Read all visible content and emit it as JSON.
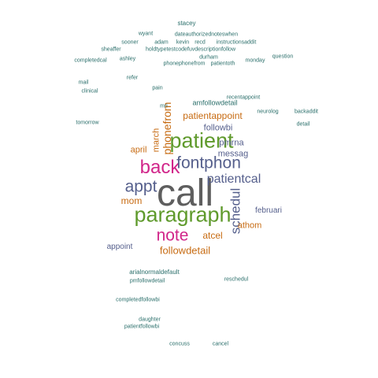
{
  "cloud": {
    "colors": {
      "gray": "#5e5e5e",
      "green": "#5f9a2c",
      "magenta": "#d1268a",
      "orange": "#c76b12",
      "slate": "#555f8c",
      "teal": "#2b6f6b",
      "blue": "#226b94"
    },
    "words": [
      "call",
      "paragraph",
      "patient",
      "back",
      "fontphon",
      "note",
      "appt",
      "patientcal",
      "schedul",
      "phonefrom",
      "followdetail",
      "patientappoint",
      "atcel",
      "mom",
      "april",
      "march",
      "followbi",
      "pmrna",
      "messag",
      "februari",
      "athom",
      "appoint",
      "stacey",
      "wyant",
      "dateauthorizednoteswhen",
      "sooner",
      "adam",
      "kevin",
      "recd",
      "instructionsaddit",
      "sheaffer",
      "holdtypetestcodefuvdescriptionfollow",
      "question",
      "completedcal",
      "phonephonefrom",
      "patientoth",
      "ashley",
      "mail",
      "sooner",
      "durham",
      "monday",
      "pain",
      "clinical",
      "refer",
      "recentappoint",
      "mri",
      "amfollowdetail",
      "neurolog",
      "backaddit",
      "detail",
      "tomorrow",
      "arialnormaldefault",
      "pmfollowdetail",
      "completedfollowbi",
      "patientfollowbi",
      "daughter",
      "reschedul",
      "concuss",
      "cancel"
    ]
  }
}
